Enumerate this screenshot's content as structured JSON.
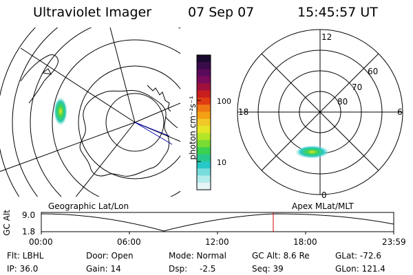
{
  "header": {
    "title": "Ultraviolet Imager",
    "date": "07 Sep 07",
    "time": "15:45:57 UT"
  },
  "left_map": {
    "caption": "Geographic Lat/Lon"
  },
  "right_map": {
    "caption": "Apex MLat/MLT",
    "mlt_labels": [
      "12",
      "18",
      "6",
      "0"
    ],
    "lat_labels": [
      "60",
      "70",
      "80"
    ]
  },
  "colorbar": {
    "unit_label": "photon cm⁻²s⁻¹",
    "ticks": [
      "100",
      "10"
    ],
    "colors_top_to_bottom": [
      "#1a0a2e",
      "#3a0a4a",
      "#5a0a5a",
      "#7a0a5a",
      "#a0103c",
      "#c81e1e",
      "#e03c14",
      "#f07814",
      "#f5a014",
      "#f0c828",
      "#e6e628",
      "#b4e628",
      "#78dc32",
      "#3cd250",
      "#28c88c",
      "#28c8c8",
      "#78dcdc",
      "#b4ebeb",
      "#e6f5f5"
    ]
  },
  "altitude_plot": {
    "ylabel": "GC Alt",
    "y_ticks": [
      "9.0",
      "1.8"
    ],
    "x_ticks": [
      "00:00",
      "06:00",
      "12:00",
      "18:00",
      "23:59"
    ],
    "current_time_marker_color": "#d00000"
  },
  "status": {
    "row1": {
      "filter": "Flt: LBHL",
      "door": "Door: Open",
      "mode": "Mode: Normal",
      "gc_alt": "GC Alt: 8.6 Re",
      "glat": "GLat: -72.6"
    },
    "row2": {
      "ip": "IP: 36.0",
      "gain": "Gain: 14",
      "dsp_label": "Dsp:",
      "dsp_value": "-2.5",
      "seq": "Seq: 39",
      "glon": "GLon: 121.4"
    }
  }
}
